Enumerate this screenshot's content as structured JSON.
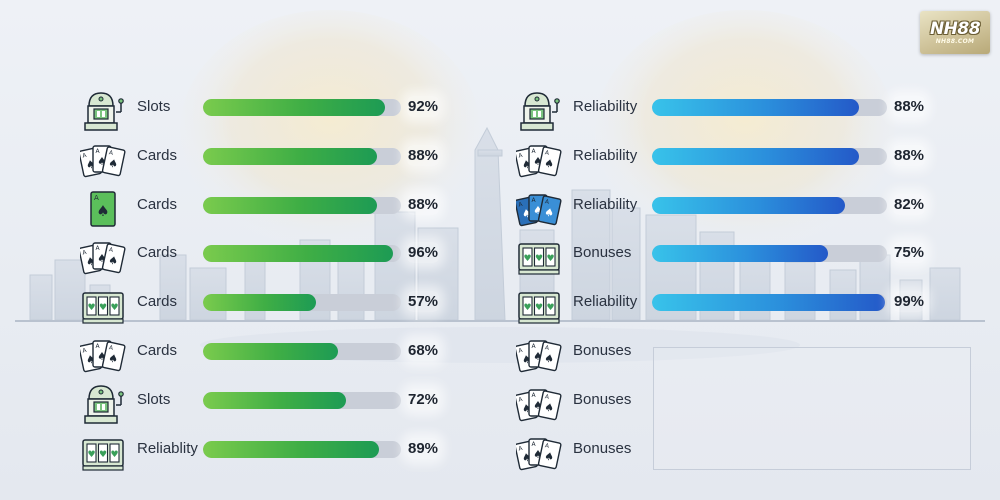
{
  "logo": {
    "main": "NH88",
    "sub": "NH88.COM"
  },
  "colors": {
    "green_start": "#7acb4d",
    "green_end": "#1d9b54",
    "blue_start": "#38c3ea",
    "blue_end": "#2459c8",
    "track": "#c9ced8"
  },
  "chart_data": [
    {
      "type": "bar",
      "orientation": "horizontal",
      "xlim": [
        0,
        100
      ],
      "categories": [
        "Slots",
        "Cards",
        "Cards",
        "Cards",
        "Cards",
        "Cards",
        "Slots",
        "Reliablity"
      ],
      "icons": [
        "slot-machine-icon",
        "playing-cards-icon",
        "single-card-icon",
        "playing-cards-icon",
        "slot-reels-icon",
        "playing-cards-icon",
        "slot-machine-icon",
        "slot-reels-icon"
      ],
      "values": [
        92,
        88,
        88,
        96,
        57,
        68,
        72,
        89
      ],
      "value_labels": [
        "92%",
        "88%",
        "88%",
        "96%",
        "57%",
        "68%",
        "72%",
        "89%"
      ],
      "color": "green"
    },
    {
      "type": "bar",
      "orientation": "horizontal",
      "xlim": [
        0,
        100
      ],
      "categories": [
        "Reliability",
        "Reliability",
        "Reliability",
        "Bonuses",
        "Reliability",
        "Bonuses",
        "Bonuses",
        "Bonuses"
      ],
      "icons": [
        "slot-machine-icon",
        "playing-cards-icon",
        "blue-cards-icon",
        "slot-reels-icon",
        "slot-reels-icon",
        "playing-cards-icon",
        "playing-cards-icon",
        "playing-cards-icon"
      ],
      "values": [
        88,
        88,
        82,
        75,
        99,
        null,
        null,
        null
      ],
      "value_labels": [
        "88%",
        "88%",
        "82%",
        "75%",
        "99%",
        "",
        "",
        ""
      ],
      "color": "blue"
    }
  ]
}
